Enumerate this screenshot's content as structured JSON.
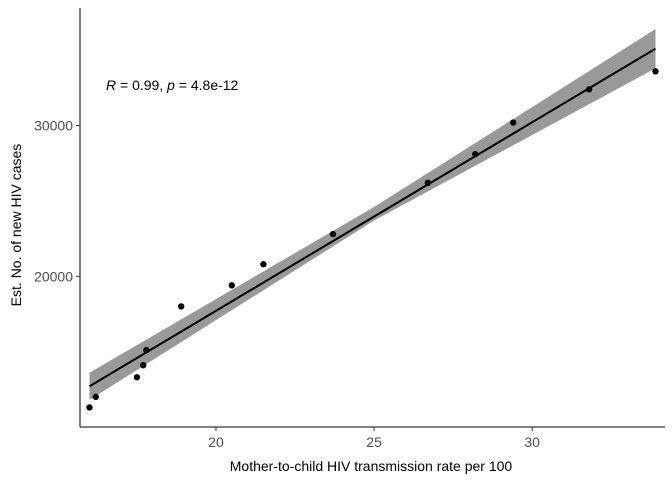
{
  "chart_data": {
    "type": "scatter",
    "xlabel": "Mother-to-child HIV transmission rate per 100",
    "ylabel": "Est. No. of new HIV cases",
    "xlim": [
      15.7,
      34.2
    ],
    "ylim": [
      10000,
      37800
    ],
    "x_ticks": [
      20,
      25,
      30
    ],
    "y_ticks": [
      20000,
      30000
    ],
    "x_tick_labels": [
      "20",
      "25",
      "30"
    ],
    "y_tick_labels": [
      "20000",
      "30000"
    ],
    "grid": false,
    "annotation": {
      "r_label": "R",
      "r_value": " = 0.99, ",
      "p_label": "p",
      "p_value": " = 4.8e-12"
    },
    "points": [
      {
        "x": 16.0,
        "y": 11300
      },
      {
        "x": 16.2,
        "y": 12000
      },
      {
        "x": 17.5,
        "y": 13300
      },
      {
        "x": 17.7,
        "y": 14100
      },
      {
        "x": 17.8,
        "y": 15100
      },
      {
        "x": 18.9,
        "y": 18000
      },
      {
        "x": 20.5,
        "y": 19400
      },
      {
        "x": 21.5,
        "y": 20800
      },
      {
        "x": 23.7,
        "y": 22800
      },
      {
        "x": 26.7,
        "y": 26200
      },
      {
        "x": 28.2,
        "y": 28100
      },
      {
        "x": 29.4,
        "y": 30200
      },
      {
        "x": 31.8,
        "y": 32400
      },
      {
        "x": 33.9,
        "y": 33600
      }
    ],
    "fit_line": {
      "x": [
        16.0,
        33.9
      ],
      "y": [
        12700,
        35100
      ]
    },
    "confidence_band": {
      "x": [
        16.0,
        25.0,
        33.9
      ],
      "lower": [
        11800,
        23700,
        33800
      ],
      "upper": [
        13600,
        24600,
        36400
      ]
    },
    "colors": {
      "points": "#000000",
      "line": "#000000",
      "band": "#999999",
      "axis": "#000000"
    }
  }
}
